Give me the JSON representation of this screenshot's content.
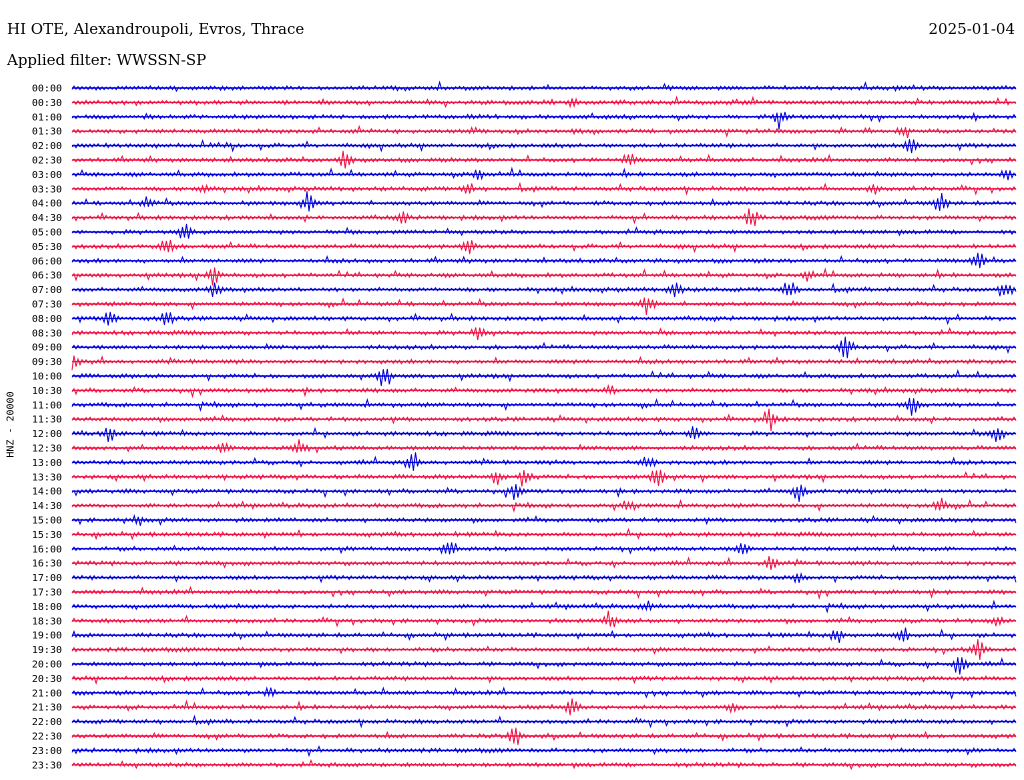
{
  "header": {
    "title": "HI OTE, Alexandroupoli, Evros, Thrace",
    "date": "2025-01-04",
    "filter": "Applied filter: WWSSN-SP"
  },
  "chart_data": {
    "type": "line",
    "ylabel": "HNZ - 20000",
    "colors": {
      "even_rows": "#0000dd",
      "odd_rows": "#ee1144"
    },
    "rows": [
      {
        "label": "00:00",
        "events": []
      },
      {
        "label": "00:30",
        "events": [
          [
            0.53,
            0.35
          ]
        ]
      },
      {
        "label": "01:00",
        "events": [
          [
            0.75,
            0.8
          ]
        ]
      },
      {
        "label": "01:30",
        "events": [
          [
            0.88,
            0.5
          ]
        ]
      },
      {
        "label": "02:00",
        "events": [
          [
            0.89,
            1.0
          ]
        ]
      },
      {
        "label": "02:30",
        "events": [
          [
            0.29,
            0.9
          ],
          [
            0.59,
            0.6
          ]
        ]
      },
      {
        "label": "03:00",
        "events": [
          [
            0.43,
            0.5
          ],
          [
            0.99,
            0.6
          ]
        ]
      },
      {
        "label": "03:30",
        "events": [
          [
            0.14,
            0.5
          ],
          [
            0.42,
            0.45
          ],
          [
            0.85,
            0.4
          ]
        ]
      },
      {
        "label": "04:00",
        "events": [
          [
            0.08,
            0.55
          ],
          [
            0.25,
            1.1
          ],
          [
            0.92,
            1.0
          ]
        ]
      },
      {
        "label": "04:30",
        "events": [
          [
            0.35,
            0.5
          ],
          [
            0.72,
            1.0
          ]
        ]
      },
      {
        "label": "05:00",
        "events": [
          [
            0.12,
            0.9
          ]
        ]
      },
      {
        "label": "05:30",
        "events": [
          [
            0.1,
            1.0
          ],
          [
            0.42,
            0.8
          ]
        ]
      },
      {
        "label": "06:00",
        "events": [
          [
            0.96,
            0.9
          ]
        ]
      },
      {
        "label": "06:30",
        "events": [
          [
            0.15,
            1.0
          ],
          [
            0.78,
            0.5
          ]
        ]
      },
      {
        "label": "07:00",
        "events": [
          [
            0.15,
            0.7
          ],
          [
            0.64,
            0.9
          ],
          [
            0.76,
            0.9
          ],
          [
            0.99,
            0.7
          ]
        ]
      },
      {
        "label": "07:30",
        "events": [
          [
            0.61,
            1.0
          ]
        ]
      },
      {
        "label": "08:00",
        "events": [
          [
            0.04,
            0.9
          ],
          [
            0.1,
            0.8
          ]
        ]
      },
      {
        "label": "08:30",
        "events": [
          [
            0.43,
            0.7
          ]
        ]
      },
      {
        "label": "09:00",
        "events": [
          [
            0.82,
            1.1
          ]
        ]
      },
      {
        "label": "09:30",
        "events": [
          [
            0.0,
            0.9
          ]
        ]
      },
      {
        "label": "10:00",
        "events": [
          [
            0.33,
            1.1
          ]
        ]
      },
      {
        "label": "10:30",
        "events": [
          [
            0.57,
            0.4
          ]
        ]
      },
      {
        "label": "11:00",
        "events": [
          [
            0.89,
            1.0
          ]
        ]
      },
      {
        "label": "11:30",
        "events": [
          [
            0.74,
            1.1
          ]
        ]
      },
      {
        "label": "12:00",
        "events": [
          [
            0.04,
            0.8
          ],
          [
            0.66,
            0.7
          ],
          [
            0.98,
            1.0
          ]
        ]
      },
      {
        "label": "12:30",
        "events": [
          [
            0.16,
            0.6
          ],
          [
            0.24,
            0.8
          ]
        ]
      },
      {
        "label": "13:00",
        "events": [
          [
            0.36,
            0.8
          ],
          [
            0.61,
            0.6
          ]
        ]
      },
      {
        "label": "13:30",
        "events": [
          [
            0.45,
            0.8
          ],
          [
            0.48,
            0.9
          ],
          [
            0.62,
            1.1
          ]
        ]
      },
      {
        "label": "14:00",
        "events": [
          [
            0.47,
            0.7
          ],
          [
            0.77,
            1.0
          ]
        ]
      },
      {
        "label": "14:30",
        "events": [
          [
            0.59,
            0.5
          ],
          [
            0.92,
            0.8
          ]
        ]
      },
      {
        "label": "15:00",
        "events": [
          [
            0.07,
            0.5
          ]
        ]
      },
      {
        "label": "15:30",
        "events": []
      },
      {
        "label": "16:00",
        "events": [
          [
            0.4,
            0.8
          ],
          [
            0.71,
            0.5
          ]
        ]
      },
      {
        "label": "16:30",
        "events": [
          [
            0.74,
            0.9
          ]
        ]
      },
      {
        "label": "17:00",
        "events": [
          [
            0.77,
            0.5
          ]
        ]
      },
      {
        "label": "17:30",
        "events": []
      },
      {
        "label": "18:00",
        "events": [
          [
            0.61,
            0.4
          ]
        ]
      },
      {
        "label": "18:30",
        "events": [
          [
            0.57,
            0.9
          ],
          [
            0.98,
            0.5
          ]
        ]
      },
      {
        "label": "19:00",
        "events": [
          [
            0.81,
            0.8
          ],
          [
            0.88,
            1.0
          ]
        ]
      },
      {
        "label": "19:30",
        "events": [
          [
            0.96,
            1.0
          ]
        ]
      },
      {
        "label": "20:00",
        "events": [
          [
            0.94,
            1.1
          ]
        ]
      },
      {
        "label": "20:30",
        "events": []
      },
      {
        "label": "21:00",
        "events": [
          [
            0.21,
            0.4
          ]
        ]
      },
      {
        "label": "21:30",
        "events": [
          [
            0.53,
            0.8
          ],
          [
            0.7,
            0.5
          ]
        ]
      },
      {
        "label": "22:00",
        "events": []
      },
      {
        "label": "22:30",
        "events": [
          [
            0.47,
            1.0
          ]
        ]
      },
      {
        "label": "23:00",
        "events": []
      },
      {
        "label": "23:30",
        "events": []
      }
    ]
  }
}
